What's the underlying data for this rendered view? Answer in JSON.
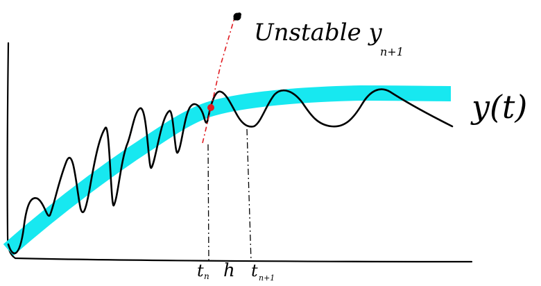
{
  "labels": {
    "unstable": "Unstable y",
    "unstable_sub": "n+1",
    "curve": "y(t)",
    "t_n": "t",
    "t_n_sub": "n",
    "step": "h",
    "t_n1": "t",
    "t_n1_sub": "n+1"
  },
  "colors": {
    "true_solution": "#17e8f0",
    "numerical_solution": "#000000",
    "unstable_marker": "#e0191f",
    "axes": "#000000"
  }
}
